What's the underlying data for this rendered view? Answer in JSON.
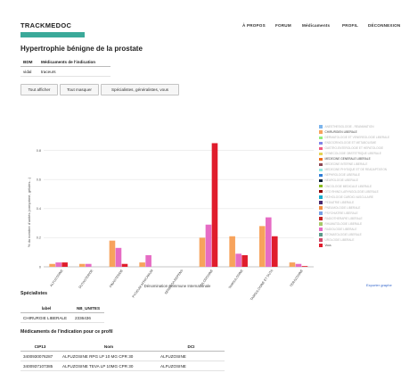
{
  "logo": {
    "text": "TRACKMEDOC"
  },
  "nav": {
    "items": [
      "À PROPOS",
      "FORUM",
      "Médicaments",
      "PROFIL",
      "DÉCONNEXION"
    ]
  },
  "page_title": "Hypertrophie bénigne de la prostate",
  "indication_table": {
    "headers": [
      "BDM",
      "Médicaments de l'indication"
    ],
    "rows": [
      [
        "vidal",
        "traceurs"
      ]
    ]
  },
  "buttons": {
    "show_all": "Tout afficher",
    "hide_all": "Tout masquer",
    "specialists": "Spécialistes, généralistes, vous"
  },
  "legend": [
    {
      "label": "ANESTHESIOLOGIE - REANIMATION",
      "active": false
    },
    {
      "label": "CHIRURGIEN LIBERALE",
      "active": true
    },
    {
      "label": "DERMATOLOGIE ET VENEREOLOGIE LIBERALE",
      "active": false
    },
    {
      "label": "ENDOCRINOLOGIE ET METABOLISME",
      "active": false
    },
    {
      "label": "GASTRO-ENTEROLOGIE ET HEPATOLOGIE",
      "active": false
    },
    {
      "label": "GYNECOLOGIE OBSTETRIQUE LIBERALE",
      "active": false
    },
    {
      "label": "MEDECINE GENERALE LIBERALE",
      "active": true
    },
    {
      "label": "MEDECINE INTERNE LIBERALE",
      "active": false
    },
    {
      "label": "MEDECINE PHYSIQUE ET DE READAPTATION",
      "active": false
    },
    {
      "label": "NEPHROLOGIE LIBERALE",
      "active": false
    },
    {
      "label": "NEUROLOGIE LIBERALE",
      "active": false
    },
    {
      "label": "ONCOLOGIE MEDICALE LIBERALE",
      "active": false
    },
    {
      "label": "OTO RHINO LARYNGOLOGIE LIBERALE",
      "active": false
    },
    {
      "label": "PATHOLOGIE CARDIO-VASCULAIRE",
      "active": false
    },
    {
      "label": "PEDIATRIE LIBERALE",
      "active": false
    },
    {
      "label": "PNEUMOLOGIE LIBERALE",
      "active": false
    },
    {
      "label": "PSYCHIATRIE LIBERALE",
      "active": false
    },
    {
      "label": "RADIOTHERAPIE LIBERALE",
      "active": false
    },
    {
      "label": "RHUMATOLOGIE LIBERALE",
      "active": false
    },
    {
      "label": "RADIOLOGIE LIBERALE",
      "active": false
    },
    {
      "label": "STOMATOLOGIE LIBERALE",
      "active": false
    },
    {
      "label": "UROLOGIE LIBERALE",
      "active": false
    },
    {
      "label": "Vous",
      "active": true
    }
  ],
  "legend_colors": [
    "#7cb5ec",
    "#f7a35c",
    "#90ed7d",
    "#8085e9",
    "#f15c80",
    "#e4d354",
    "#ee6b1e",
    "#8d4653",
    "#91e8e1",
    "#2f7ed8",
    "#0d233a",
    "#8bbc21",
    "#910000",
    "#1aadce",
    "#492970",
    "#f28f43",
    "#77a1e5",
    "#c42525",
    "#a6c96a",
    "#e66cc4",
    "#5b9b8a",
    "#d04a6b",
    "#e01d2c"
  ],
  "export_link": "Exporter graphe",
  "chart_data": {
    "type": "bar",
    "ylabel": "% du nombre d'unités (comprimé, gélules...)",
    "xlabel": "Dénomination Commune Internationale",
    "ylim": [
      0,
      1
    ],
    "yticks": [
      "0",
      "0.2",
      "0.4",
      "0.6",
      "0.8"
    ],
    "categories": [
      "ALFUZOSINE",
      "DUTASTERIDE",
      "FINASTERIDE",
      "PYGEUM AFRICANUM",
      "SERENOA REPENS",
      "SILODOSINE",
      "TAMSULOSINE",
      "TAMSULOSINE ET DUTA",
      "TERAZOSINE"
    ],
    "series": [
      {
        "name": "CHIRURGIEN LIBERALE",
        "color": "#f7a35c",
        "values": [
          0.02,
          0.02,
          0.18,
          0.03,
          0.0,
          0.2,
          0.21,
          0.28,
          0.03
        ]
      },
      {
        "name": "MEDECINE GENERALE LIBERALE",
        "color": "#e66cc4",
        "values": [
          0.03,
          0.02,
          0.13,
          0.08,
          0.0,
          0.29,
          0.09,
          0.34,
          0.02
        ]
      },
      {
        "name": "Vous",
        "color": "#e01d2c",
        "values": [
          0.03,
          0.0,
          0.02,
          0.0,
          0.0,
          0.85,
          0.08,
          0.21,
          0.005
        ]
      }
    ]
  },
  "specialists": {
    "title": "Spécialistes",
    "headers": [
      "label",
      "NB_UNITES"
    ],
    "rows": [
      [
        "CHIRURGIE LIBERALE",
        "2336436"
      ]
    ]
  },
  "medications": {
    "title": "Médicaments de l'indication pour ce profil",
    "headers": [
      "CIP13",
      "Nom",
      "DCI"
    ],
    "rows": [
      [
        "3400930076287",
        "ALFUZOSINE RPG LP 10 MG CPR 30",
        "ALFUZOSINE"
      ],
      [
        "3400937107385",
        "ALFUZOSINE TEVA LP 10MG CPR 30",
        "ALFUZOSINE"
      ]
    ]
  }
}
